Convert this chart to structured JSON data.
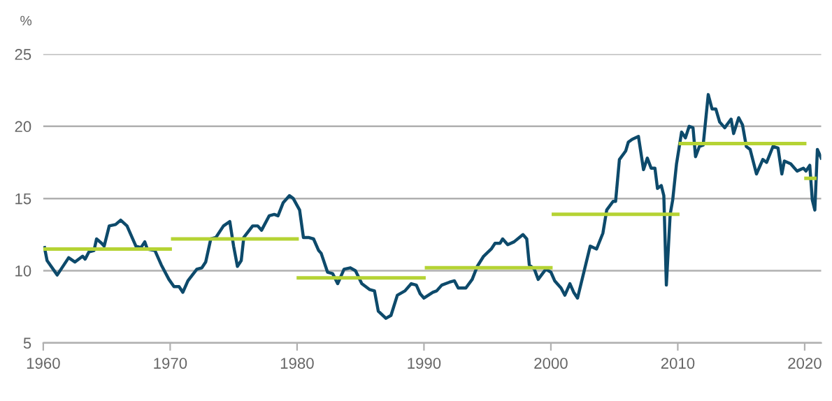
{
  "chart_data": {
    "type": "line",
    "ylabel": "%",
    "xlim": [
      1960,
      2021.3
    ],
    "xticks": [
      1960,
      1970,
      1980,
      1990,
      2000,
      2010,
      2020
    ],
    "ylim": [
      5,
      25
    ],
    "yticks": [
      5,
      10,
      15,
      20,
      25
    ],
    "grid": "y",
    "marker": "none",
    "line_style": "solid",
    "series": [
      {
        "color": "#0d4a6b",
        "x": [
          1960.1,
          1960.3,
          1961.1,
          1962.0,
          1962.5,
          1963.1,
          1963.3,
          1963.6,
          1964.0,
          1964.2,
          1964.6,
          1964.8,
          1965.2,
          1965.7,
          1966.1,
          1966.6,
          1967.3,
          1967.7,
          1968.0,
          1968.2,
          1968.8,
          1969.3,
          1969.9,
          1970.3,
          1970.7,
          1971.0,
          1971.4,
          1972.1,
          1972.5,
          1972.8,
          1973.2,
          1973.6,
          1974.2,
          1974.7,
          1975.0,
          1975.3,
          1975.6,
          1975.8,
          1976.5,
          1976.9,
          1977.2,
          1977.8,
          1978.2,
          1978.5,
          1978.9,
          1979.4,
          1979.7,
          1980.2,
          1980.5,
          1980.9,
          1981.3,
          1981.7,
          1981.9,
          1982.4,
          1982.8,
          1983.2,
          1983.7,
          1984.2,
          1984.6,
          1985.1,
          1985.7,
          1986.1,
          1986.4,
          1987.0,
          1987.4,
          1987.9,
          1988.5,
          1989.0,
          1989.4,
          1989.7,
          1990.0,
          1990.7,
          1991.0,
          1991.4,
          1992.0,
          1992.4,
          1992.7,
          1993.3,
          1993.8,
          1994.2,
          1994.7,
          1995.3,
          1995.6,
          1996.0,
          1996.2,
          1996.6,
          1997.1,
          1997.8,
          1998.1,
          1998.3,
          1998.7,
          1999.0,
          1999.6,
          2000.0,
          2000.3,
          2000.8,
          2001.1,
          2001.5,
          2001.8,
          2002.1,
          2003.1,
          2003.6,
          2004.1,
          2004.4,
          2004.9,
          2005.1,
          2005.4,
          2005.9,
          2006.1,
          2006.4,
          2006.9,
          2007.3,
          2007.6,
          2007.9,
          2008.2,
          2008.4,
          2008.7,
          2008.9,
          2009.1,
          2009.4,
          2009.6,
          2009.9,
          2010.3,
          2010.6,
          2010.9,
          2011.2,
          2011.4,
          2011.7,
          2012.0,
          2012.4,
          2012.7,
          2013.0,
          2013.3,
          2013.7,
          2014.2,
          2014.4,
          2014.8,
          2015.1,
          2015.4,
          2015.7,
          2016.2,
          2016.7,
          2017.0,
          2017.5,
          2017.9,
          2018.2,
          2018.4,
          2018.9,
          2019.4,
          2019.9,
          2020.1,
          2020.4,
          2020.6,
          2020.8,
          2021.0,
          2021.3
        ],
        "values": [
          11.6,
          10.7,
          9.7,
          10.9,
          10.6,
          11.0,
          10.8,
          11.3,
          11.4,
          12.2,
          11.9,
          11.7,
          13.1,
          13.2,
          13.5,
          13.1,
          11.7,
          11.6,
          12.0,
          11.5,
          11.4,
          10.4,
          9.4,
          8.9,
          8.9,
          8.5,
          9.3,
          10.1,
          10.2,
          10.6,
          12.2,
          12.3,
          13.1,
          13.4,
          11.7,
          10.3,
          10.7,
          12.3,
          13.1,
          13.1,
          12.8,
          13.8,
          13.9,
          13.8,
          14.7,
          15.2,
          15.0,
          14.2,
          12.3,
          12.3,
          12.2,
          11.4,
          11.2,
          9.9,
          9.8,
          9.1,
          10.1,
          10.2,
          10.0,
          9.1,
          8.7,
          8.6,
          7.2,
          6.7,
          6.9,
          8.3,
          8.6,
          9.1,
          9.0,
          8.4,
          8.1,
          8.5,
          8.6,
          9.0,
          9.2,
          9.3,
          8.8,
          8.8,
          9.4,
          10.3,
          11.0,
          11.5,
          11.9,
          11.9,
          12.2,
          11.8,
          12.0,
          12.5,
          12.2,
          10.4,
          10.1,
          9.4,
          10.1,
          9.9,
          9.3,
          8.8,
          8.3,
          9.1,
          8.5,
          8.1,
          11.7,
          11.5,
          12.6,
          14.2,
          14.8,
          14.8,
          17.7,
          18.3,
          18.9,
          19.1,
          19.3,
          17.0,
          17.8,
          17.1,
          17.1,
          15.7,
          15.9,
          15.2,
          9.0,
          13.9,
          14.9,
          17.4,
          19.6,
          19.2,
          20.0,
          19.9,
          17.9,
          18.6,
          18.7,
          22.2,
          21.2,
          21.2,
          20.3,
          19.9,
          20.5,
          19.5,
          20.6,
          20.1,
          18.6,
          18.4,
          16.7,
          17.7,
          17.5,
          18.6,
          18.5,
          16.7,
          17.6,
          17.4,
          16.9,
          17.1,
          16.9,
          17.3,
          14.9,
          14.2,
          18.4,
          17.8
        ]
      },
      {
        "color": "#b5d334",
        "x": [
          1960.1,
          1970.0,
          1970.1,
          1970.2,
          1980.0,
          1980.05,
          1980.1,
          1990.0,
          1990.1,
          1990.2,
          2000.0,
          2000.1,
          2000.2,
          2010.0,
          2010.1,
          2010.2,
          2020.0,
          2020.05,
          2020.1,
          2020.8
        ],
        "values": [
          11.5,
          11.5,
          null,
          12.2,
          12.2,
          null,
          9.5,
          9.5,
          null,
          10.2,
          10.2,
          null,
          13.9,
          13.9,
          null,
          18.8,
          18.8,
          null,
          16.4,
          16.4
        ]
      }
    ]
  }
}
